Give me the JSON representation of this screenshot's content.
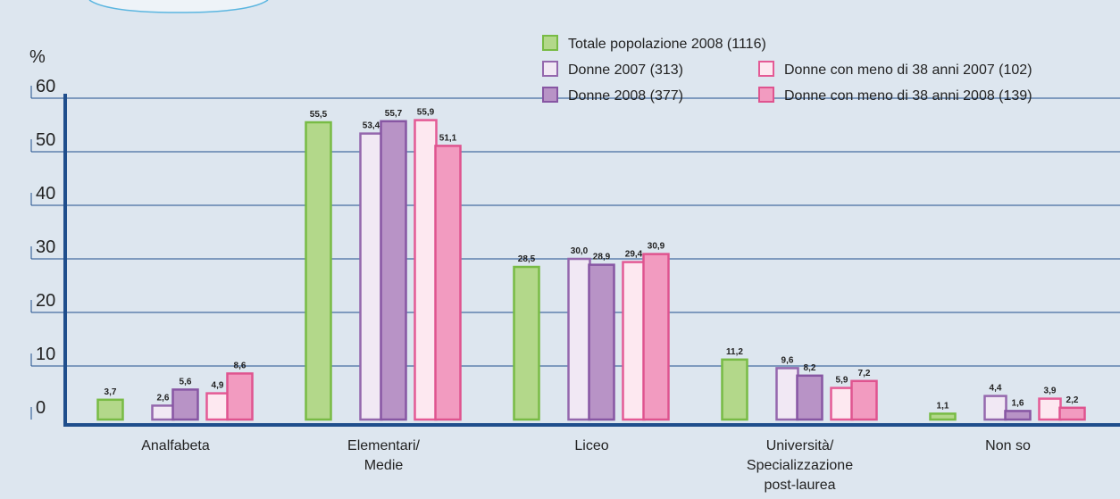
{
  "chart_data": {
    "type": "bar",
    "y_label": "%",
    "categories": [
      [
        "Analfabeta"
      ],
      [
        "Elementari/",
        "Medie"
      ],
      [
        "Liceo"
      ],
      [
        "Università/",
        "Specializzazione",
        "post-laurea"
      ],
      [
        "Non so"
      ]
    ],
    "series": [
      {
        "name": "Totale popolazione 2008 (1116)",
        "color": "#b3d88a",
        "stroke": "#78bb45",
        "values": [
          3.7,
          55.5,
          28.5,
          11.2,
          1.1
        ],
        "value_labels": [
          "3,7",
          "55,5",
          "28,5",
          "11,2",
          "1,1"
        ]
      },
      {
        "name": "Donne 2007 (313)",
        "color": "#f1e8f4",
        "stroke": "#9467ad",
        "values": [
          2.6,
          53.4,
          30.0,
          9.6,
          4.4
        ],
        "value_labels": [
          "2,6",
          "53,4",
          "30,0",
          "9,6",
          "4,4"
        ]
      },
      {
        "name": "Donne 2008 (377)",
        "color": "#b893c6",
        "stroke": "#8756a3",
        "values": [
          5.6,
          55.7,
          28.9,
          8.2,
          1.6
        ],
        "value_labels": [
          "5,6",
          "55,7",
          "28,9",
          "8,2",
          "1,6"
        ]
      },
      {
        "name": "Donne con meno di 38 anni 2007 (102)",
        "color": "#fde8f0",
        "stroke": "#e45a95",
        "values": [
          4.9,
          55.9,
          29.4,
          5.9,
          3.9
        ],
        "value_labels": [
          "4,9",
          "55,9",
          "29,4",
          "5,9",
          "3,9"
        ]
      },
      {
        "name": "Donne con meno di 38 anni 2008 (139)",
        "color": "#f29bc0",
        "stroke": "#df548f",
        "values": [
          8.6,
          51.1,
          30.9,
          7.2,
          2.2
        ],
        "value_labels": [
          "8,6",
          "51,1",
          "30,9",
          "7,2",
          "2,2"
        ]
      }
    ],
    "ylim": [
      0,
      60
    ],
    "yticks": [
      0,
      10,
      20,
      30,
      40,
      50,
      60
    ],
    "grid": true
  }
}
